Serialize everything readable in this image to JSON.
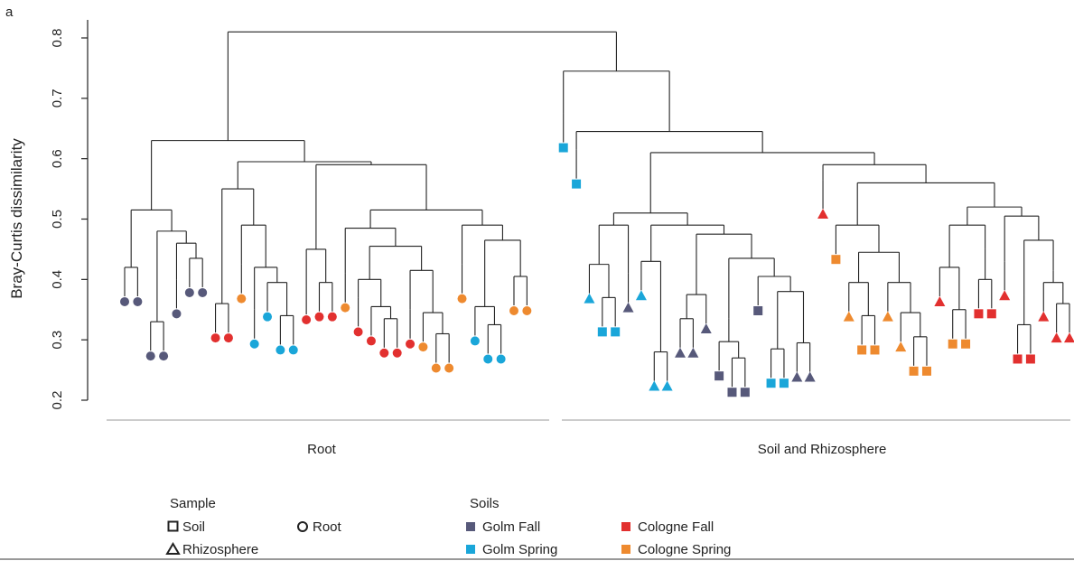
{
  "panel_label": "a",
  "colors": {
    "golm_fall": "#57597a",
    "golm_spring": "#1aa6d9",
    "cologne_fall": "#e2302f",
    "cologne_spring": "#ee8a2f",
    "line": "#222222"
  },
  "chart_data": {
    "type": "dendrogram",
    "ylabel": "Bray-Curtis dissimilarity",
    "ylim": [
      0.2,
      0.8
    ],
    "yticks": [
      "0.2",
      "0.3",
      "0.4",
      "0.5",
      "0.6",
      "0.7",
      "0.8"
    ],
    "groups": [
      "Root",
      "Soil and Rhizosphere"
    ],
    "tree": [
      0.81,
      [
        0.63,
        [
          0.515,
          [
            0.42,
            "RGF",
            "RGF"
          ],
          [
            0.48,
            [
              0.33,
              "RGF",
              "RGF"
            ],
            [
              0.46,
              [
                0.4,
                "RGF"
              ],
              [
                0.435,
                "RGF",
                "RGF"
              ]
            ]
          ]
        ],
        [
          0.595,
          [
            0.55,
            [
              0.36,
              "RCF",
              "RCF"
            ],
            [
              0.49,
              [
                0.425,
                "RCS"
              ],
              [
                0.42,
                [
                  0.35,
                  "RGS"
                ],
                [
                  0.395,
                  "RGS",
                  [
                    0.34,
                    "RGS",
                    "RGS"
                  ]
                ]
              ]
            ]
          ],
          [
            0.59,
            [
              0.45,
              [
                0.39,
                "RCF"
              ],
              [
                0.395,
                "RCF",
                "RCF"
              ]
            ],
            [
              0.515,
              [
                0.485,
                [
                  0.41,
                  "RCS"
                ],
                [
                  0.455,
                  [
                    0.4,
                    [
                      0.37,
                      "RCF"
                    ],
                    [
                      0.355,
                      "RCF",
                      [
                        0.335,
                        "RCF",
                        "RCF"
                      ]
                    ]
                  ],
                  [
                    0.415,
                    [
                      0.35,
                      "RCF"
                    ],
                    [
                      0.345,
                      "RCS",
                      [
                        0.31,
                        "RCS",
                        "RCS"
                      ]
                    ]
                  ]
                ]
              ],
              [
                0.49,
                [
                  0.425,
                  "RCS"
                ],
                [
                  0.465,
                  [
                    0.355,
                    "RGS",
                    [
                      0.325,
                      "RGS",
                      "RGS"
                    ]
                  ],
                  [
                    0.405,
                    "RCS",
                    "RCS"
                  ]
                ]
              ]
            ]
          ]
        ]
      ],
      [
        0.745,
        [
          0.675,
          "SGS"
        ],
        [
          0.645,
          [
            0.615,
            "SGS"
          ],
          [
            0.61,
            [
              0.51,
              [
                0.49,
                [
                  0.425,
                  "ZGS",
                  [
                    0.37,
                    "SGS",
                    "SGS"
                  ]
                ],
                [
                  0.41,
                  "ZGF"
                ]
              ],
              [
                0.49,
                [
                  0.43,
                  "ZGS",
                  [
                    0.28,
                    "ZGS",
                    "ZGS"
                  ]
                ],
                [
                  0.475,
                  [
                    0.375,
                    [
                      0.335,
                      "ZGF",
                      "ZGF"
                    ],
                    "ZGF"
                  ],
                  [
                    0.435,
                    [
                      0.335,
                      [
                        0.297,
                        "SGF",
                        [
                          0.27,
                          "SGF",
                          "SGF"
                        ]
                      ]
                    ],
                    [
                      0.405,
                      "SGF",
                      [
                        0.38,
                        [
                          0.285,
                          "SGS",
                          "SGS"
                        ],
                        [
                          0.295,
                          "ZGF",
                          "ZGF"
                        ]
                      ]
                    ]
                  ]
                ]
              ]
            ],
            [
              0.59,
              [
                0.565,
                "ZCF"
              ],
              [
                0.56,
                [
                  0.49,
                  "SCS",
                  [
                    0.445,
                    [
                      0.395,
                      "ZCS",
                      [
                        0.34,
                        "SCS",
                        "SCS"
                      ]
                    ],
                    [
                      0.395,
                      "ZCS",
                      [
                        0.345,
                        "ZCS",
                        [
                          0.305,
                          "SCS",
                          "SCS"
                        ]
                      ]
                    ]
                  ]
                ],
                [
                  0.52,
                  [
                    0.49,
                    [
                      0.42,
                      "ZCF",
                      [
                        0.35,
                        "SCS",
                        "SCS"
                      ]
                    ],
                    [
                      0.45,
                      [
                        0.4,
                        "SCF",
                        "SCF"
                      ]
                    ]
                  ],
                  [
                    0.505,
                    [
                      0.43,
                      "ZCF"
                    ],
                    [
                      0.465,
                      [
                        0.375,
                        [
                          0.325,
                          "SCF",
                          "SCF"
                        ]
                      ],
                      [
                        0.415,
                        [
                          0.395,
                          "ZCF",
                          [
                            0.36,
                            "ZCF",
                            "ZCF"
                          ]
                        ]
                      ]
                    ]
                  ]
                ]
              ]
            ]
          ]
        ]
      ]
    ]
  },
  "legend": {
    "sample_title": "Sample",
    "soil": "Soil",
    "root": "Root",
    "rhizosphere": "Rhizosphere",
    "soils_title": "Soils",
    "golm_fall": "Golm Fall",
    "golm_spring": "Golm Spring",
    "cologne_fall": "Cologne Fall",
    "cologne_spring": "Cologne Spring"
  }
}
